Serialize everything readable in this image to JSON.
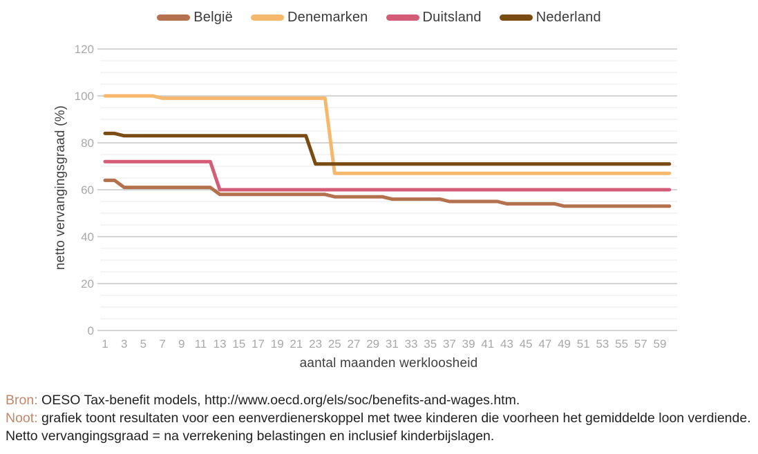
{
  "legend": {
    "items": [
      {
        "label": "België",
        "color": "#b4714e"
      },
      {
        "label": "Denemarken",
        "color": "#f6b86d"
      },
      {
        "label": "Duitsland",
        "color": "#d45c77"
      },
      {
        "label": "Nederland",
        "color": "#7a4b12"
      }
    ]
  },
  "chart_data": {
    "type": "line",
    "title": "",
    "xlabel": "aantal maanden werkloosheid",
    "ylabel": "netto vervangingsgraad (%)",
    "xlim": [
      1,
      60
    ],
    "ylim": [
      0,
      120
    ],
    "x_tick_labels": [
      1,
      3,
      5,
      7,
      9,
      11,
      13,
      15,
      17,
      19,
      21,
      23,
      25,
      27,
      29,
      31,
      33,
      35,
      37,
      39,
      41,
      43,
      45,
      47,
      49,
      51,
      53,
      55,
      57,
      59
    ],
    "y_tick_labels": [
      0,
      20,
      40,
      60,
      80,
      100,
      120
    ],
    "minor_gridline_step": 5,
    "major_gridline_step": 20,
    "grid": "horizontal",
    "legend_position": "top",
    "line_width": 5,
    "series": [
      {
        "name": "België",
        "color": "#b4714e",
        "segments": [
          {
            "from": 1,
            "to": 2,
            "value": 64
          },
          {
            "from": 3,
            "to": 12,
            "value": 61
          },
          {
            "from": 13,
            "to": 24,
            "value": 58
          },
          {
            "from": 25,
            "to": 30,
            "value": 57
          },
          {
            "from": 31,
            "to": 36,
            "value": 56
          },
          {
            "from": 37,
            "to": 42,
            "value": 55
          },
          {
            "from": 43,
            "to": 48,
            "value": 54
          },
          {
            "from": 49,
            "to": 60,
            "value": 53
          }
        ]
      },
      {
        "name": "Denemarken",
        "color": "#f6b86d",
        "segments": [
          {
            "from": 1,
            "to": 6,
            "value": 100
          },
          {
            "from": 7,
            "to": 24,
            "value": 99
          },
          {
            "from": 25,
            "to": 60,
            "value": 67
          }
        ]
      },
      {
        "name": "Duitsland",
        "color": "#d45c77",
        "segments": [
          {
            "from": 1,
            "to": 12,
            "value": 72
          },
          {
            "from": 13,
            "to": 60,
            "value": 60
          }
        ]
      },
      {
        "name": "Nederland",
        "color": "#7a4b12",
        "segments": [
          {
            "from": 1,
            "to": 2,
            "value": 84
          },
          {
            "from": 3,
            "to": 22,
            "value": 83
          },
          {
            "from": 23,
            "to": 60,
            "value": 71
          }
        ]
      }
    ]
  },
  "source_note": {
    "prefix": "Bron:",
    "text": "OESO Tax-benefit models, http://www.oecd.org/els/soc/benefits-and-wages.htm."
  },
  "note": {
    "prefix": "Noot:",
    "text": "grafiek toont resultaten voor een eenverdienerskoppel met twee kinderen die voorheen het gemiddelde loon verdiende. Netto vervangingsgraad = na verrekening belastingen en inclusief kinderbijslagen."
  },
  "styles": {
    "tick_color": "#a8a8a8",
    "axis_title_color": "#3f3f3f",
    "legend_text_color": "#3a3a3a",
    "caption_text_color": "#222222",
    "caption_accent_color": "#c0876a",
    "major_grid_color": "#c6c6c6",
    "minor_grid_color": "#e9e9e9"
  }
}
